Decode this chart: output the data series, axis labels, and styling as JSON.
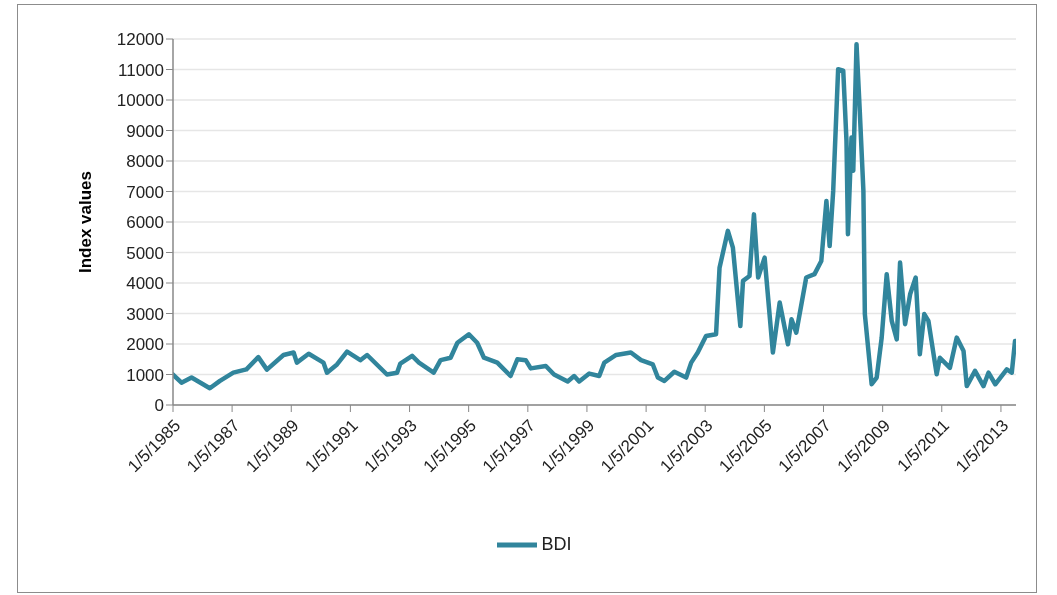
{
  "chart_data": {
    "type": "line",
    "ylabel": "Index values",
    "legend": "bottom",
    "grid": "y",
    "marker": "none",
    "line_style": "solid",
    "ylim": [
      0,
      12000
    ],
    "yticks": [
      0,
      1000,
      2000,
      3000,
      4000,
      5000,
      6000,
      7000,
      8000,
      9000,
      10000,
      11000,
      12000
    ],
    "xlim": [
      "1985-01-05",
      "2013-07-10"
    ],
    "xticks": [
      {
        "value": "1985-01-05",
        "label": "1/5/1985"
      },
      {
        "value": "1987-01-05",
        "label": "1/5/1987"
      },
      {
        "value": "1989-01-05",
        "label": "1/5/1989"
      },
      {
        "value": "1991-01-05",
        "label": "1/5/1991"
      },
      {
        "value": "1993-01-05",
        "label": "1/5/1993"
      },
      {
        "value": "1995-01-05",
        "label": "1/5/1995"
      },
      {
        "value": "1997-01-05",
        "label": "1/5/1997"
      },
      {
        "value": "1999-01-05",
        "label": "1/5/1999"
      },
      {
        "value": "2001-01-05",
        "label": "1/5/2001"
      },
      {
        "value": "2003-01-05",
        "label": "1/5/2003"
      },
      {
        "value": "2005-01-05",
        "label": "1/5/2005"
      },
      {
        "value": "2007-01-05",
        "label": "1/5/2007"
      },
      {
        "value": "2009-01-05",
        "label": "1/5/2009"
      },
      {
        "value": "2011-01-05",
        "label": "1/5/2011"
      },
      {
        "value": "2013-01-05",
        "label": "1/5/2013"
      }
    ],
    "x": [
      "1985-01-05",
      "1985-04-20",
      "1985-08-22",
      "1986-04-05",
      "1986-08-08",
      "1987-01-20",
      "1987-07-01",
      "1987-11-25",
      "1988-03-10",
      "1988-10-01",
      "1989-02-03",
      "1989-03-15",
      "1989-08-08",
      "1990-02-06",
      "1990-03-22",
      "1990-07-24",
      "1990-11-25",
      "1991-05-08",
      "1991-07-31",
      "1992-04-01",
      "1992-08-04",
      "1992-09-13",
      "1993-02-06",
      "1993-05-01",
      "1993-10-30",
      "1994-01-23",
      "1994-05-27",
      "1994-08-19",
      "1995-01-08",
      "1995-04-20",
      "1995-07-13",
      "1995-12-25",
      "1996-06-06",
      "1996-08-29",
      "1996-12-10",
      "1997-02-10",
      "1997-08-15",
      "1997-11-25",
      "1998-05-12",
      "1998-07-31",
      "1998-10-01",
      "1999-02-03",
      "1999-06-06",
      "1999-08-08",
      "2000-01-01",
      "2000-07-01",
      "2000-11-03",
      "2001-03-29",
      "2001-05-30",
      "2001-08-19",
      "2001-12-20",
      "2002-05-15",
      "2002-07-16",
      "2002-10-05",
      "2003-01-15",
      "2003-05-19",
      "2003-07-01",
      "2003-10-12",
      "2003-12-13",
      "2004-03-14",
      "2004-04-16",
      "2004-07-05",
      "2004-08-29",
      "2004-10-20",
      "2005-01-08",
      "2005-04-20",
      "2005-07-13",
      "2005-10-23",
      "2005-12-06",
      "2006-02-03",
      "2006-06-06",
      "2006-09-16",
      "2006-12-09",
      "2007-02-10",
      "2007-03-22",
      "2007-05-05",
      "2007-07-05",
      "2007-09-06",
      "2007-10-16",
      "2007-11-03",
      "2007-12-17",
      "2008-01-08",
      "2008-02-17",
      "2008-03-28",
      "2008-05-12",
      "2008-05-30",
      "2008-08-22",
      "2008-10-23",
      "2008-12-24",
      "2009-02-24",
      "2009-04-27",
      "2009-06-28",
      "2009-08-08",
      "2009-10-09",
      "2009-12-10",
      "2010-02-17",
      "2010-04-09",
      "2010-06-03",
      "2010-07-24",
      "2010-11-03",
      "2010-12-13",
      "2011-04-16",
      "2011-07-09",
      "2011-10-01",
      "2011-11-10",
      "2012-02-20",
      "2012-06-03",
      "2012-08-04",
      "2012-10-27",
      "2013-03-18",
      "2013-05-19",
      "2013-06-28"
    ],
    "series": [
      {
        "name": "BDI",
        "color": "#31859c",
        "values": [
          1000,
          730,
          900,
          550,
          790,
          1060,
          1170,
          1570,
          1160,
          1640,
          1720,
          1390,
          1680,
          1390,
          1060,
          1330,
          1750,
          1470,
          1640,
          1000,
          1060,
          1360,
          1610,
          1390,
          1060,
          1470,
          1550,
          2040,
          2320,
          2040,
          1550,
          1390,
          950,
          1500,
          1470,
          1200,
          1280,
          1000,
          770,
          950,
          770,
          1030,
          950,
          1390,
          1640,
          1720,
          1470,
          1330,
          900,
          790,
          1090,
          900,
          1390,
          1720,
          2260,
          2320,
          4500,
          5710,
          5160,
          2590,
          4070,
          4230,
          6250,
          4180,
          4830,
          1720,
          3360,
          1990,
          2810,
          2370,
          4180,
          4290,
          4720,
          6690,
          5210,
          7020,
          11010,
          10960,
          8660,
          5600,
          8770,
          7680,
          11830,
          9640,
          7020,
          2980,
          680,
          900,
          2210,
          4290,
          2760,
          2150,
          4670,
          2650,
          3630,
          4180,
          1660,
          2980,
          2760,
          1010,
          1550,
          1220,
          2210,
          1770,
          620,
          1120,
          620,
          1060,
          680,
          1170,
          1060,
          2100
        ]
      }
    ]
  }
}
